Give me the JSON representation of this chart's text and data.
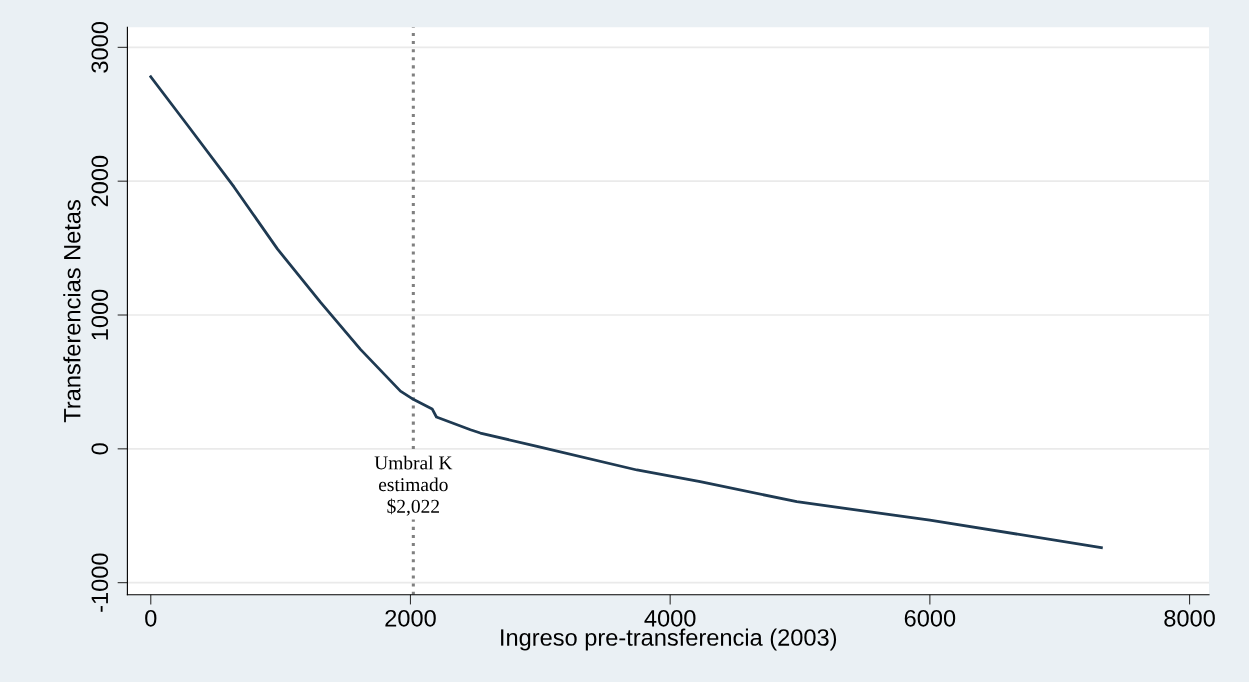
{
  "chart_data": {
    "type": "line",
    "xlabel": "Ingreso pre-transferencia (2003)",
    "ylabel": "Transferencias Netas",
    "x": [
      0,
      282,
      641,
      975,
      1308,
      1615,
      1923,
      2025,
      2167,
      2200,
      2462,
      2538,
      2975,
      3744,
      4231,
      4975,
      6000,
      7321
    ],
    "series": [
      {
        "color": "#1f3a52",
        "values": [
          2780,
          2420,
          1957,
          1494,
          1094,
          743,
          431,
          368,
          298,
          238,
          143,
          118,
          18,
          -158,
          -245,
          -395,
          -533,
          -738
        ]
      }
    ],
    "xlim": [
      -180,
      8150
    ],
    "ylim": [
      -1090,
      3150
    ],
    "xticks": [
      0,
      2000,
      4000,
      6000,
      8000
    ],
    "yticks": [
      -1000,
      0,
      1000,
      2000,
      3000
    ],
    "grid": "y",
    "legend": false,
    "marker": "none",
    "line_style": "solid",
    "ref_lines": [
      {
        "axis": "x",
        "value": 2022,
        "label": "Umbral K\nestimado\n$2,022",
        "color": "#808080",
        "line_style": "dotted"
      }
    ]
  }
}
